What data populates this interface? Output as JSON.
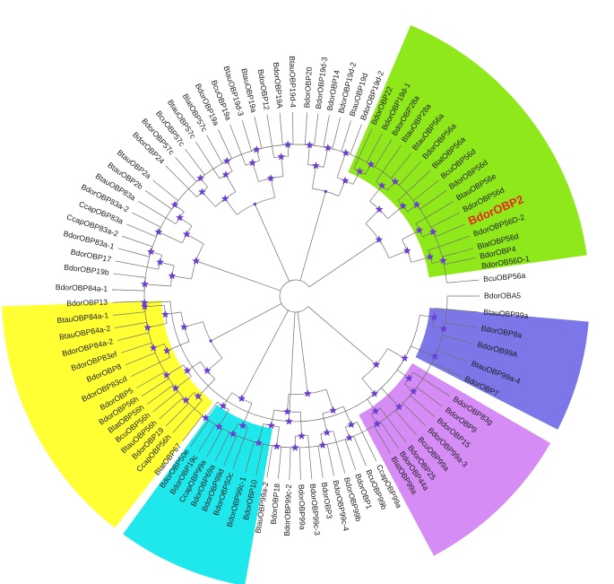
{
  "tree": {
    "highlight_leaf": "BdorOBP2",
    "clades": [
      {
        "name": "yellow",
        "color": "#ffff33",
        "from": 128,
        "to": 178
      },
      {
        "name": "green",
        "color": "#8fe81a",
        "from": 293,
        "to": 352
      },
      {
        "name": "blue",
        "color": "#7b77e8",
        "from": 5,
        "to": 27
      },
      {
        "name": "violet",
        "color": "#d58cf5",
        "from": 30,
        "to": 62
      },
      {
        "name": "cyan",
        "color": "#1ee8ec",
        "from": 100,
        "to": 126
      }
    ],
    "leaves": [
      {
        "label": "BcuOBP56a",
        "angle": 355
      },
      {
        "label": "BdorOBA5",
        "angle": 0
      },
      {
        "label": "BtauOBP99a",
        "angle": 5
      },
      {
        "label": "BdorOBP8a",
        "angle": 10
      },
      {
        "label": "BdorOB99A",
        "angle": 15
      },
      {
        "label": "BtauOBP99a-4",
        "angle": 21
      },
      {
        "label": "BdorOBP7",
        "angle": 26
      },
      {
        "label": "BdorOBP83g",
        "angle": 33
      },
      {
        "label": "BdorOBP9",
        "angle": 37
      },
      {
        "label": "BdorOBP15",
        "angle": 41
      },
      {
        "label": "BdorOBP99a-3",
        "angle": 45
      },
      {
        "label": "BcuOBP99a",
        "angle": 49
      },
      {
        "label": "BdorOBP25",
        "angle": 53
      },
      {
        "label": "BdorOBP44a",
        "angle": 56
      },
      {
        "label": "BlatOBP99a",
        "angle": 59
      },
      {
        "label": "CcapOBP99a",
        "angle": 64
      },
      {
        "label": "BcuOBP99b",
        "angle": 67.5
      },
      {
        "label": "BdorOBP1",
        "angle": 71
      },
      {
        "label": "BdorOBP99b",
        "angle": 74.5
      },
      {
        "label": "BdorOBP99c-4",
        "angle": 78
      },
      {
        "label": "BdorOBP3",
        "angle": 81.5
      },
      {
        "label": "BdorOBP99c-3",
        "angle": 85
      },
      {
        "label": "BdorOBP99a",
        "angle": 88.5
      },
      {
        "label": "BdorOBP99c-2",
        "angle": 92
      },
      {
        "label": "BdorOBP18",
        "angle": 95.5
      },
      {
        "label": "BtauOBP99a-2",
        "angle": 99
      },
      {
        "label": "BdorOBP10",
        "angle": 102.5
      },
      {
        "label": "BdorOBP99c-1",
        "angle": 106
      },
      {
        "label": "BdorOBP50c",
        "angle": 110
      },
      {
        "label": "BdorOBP99d",
        "angle": 113
      },
      {
        "label": "BdorOBP69a",
        "angle": 116
      },
      {
        "label": "CcapOBP99a",
        "angle": 119
      },
      {
        "label": "BdorOBP19c",
        "angle": 122
      },
      {
        "label": "BdorOBP50e",
        "angle": 125
      },
      {
        "label": "BlatOBP67",
        "angle": 128
      },
      {
        "label": "CcapOBP56h",
        "angle": 132
      },
      {
        "label": "BdorOBP19",
        "angle": 135
      },
      {
        "label": "BtauOBP56h",
        "angle": 138
      },
      {
        "label": "BcuOBP56h",
        "angle": 141
      },
      {
        "label": "BlatOBP56h",
        "angle": 144
      },
      {
        "label": "BdorOBP56h",
        "angle": 147
      },
      {
        "label": "BdorOBP5",
        "angle": 150
      },
      {
        "label": "BdorOBP83cd",
        "angle": 154
      },
      {
        "label": "BdorOBP8",
        "angle": 158
      },
      {
        "label": "BdorOBP83ef",
        "angle": 162
      },
      {
        "label": "BdorOBP84a-2",
        "angle": 166
      },
      {
        "label": "BtauOBP84a-2",
        "angle": 170
      },
      {
        "label": "BtauOBP84a-1",
        "angle": 174
      },
      {
        "label": "BdorOBP13",
        "angle": 178
      },
      {
        "label": "BdorOBP84a-1",
        "angle": 182
      },
      {
        "label": "BdorOBP19b",
        "angle": 187
      },
      {
        "label": "BdorOBP17",
        "angle": 191
      },
      {
        "label": "BdorOBP83a-1",
        "angle": 195
      },
      {
        "label": "CcapOBP83a-2",
        "angle": 199
      },
      {
        "label": "CcapOBP83a",
        "angle": 203
      },
      {
        "label": "BdorOBP83a-2",
        "angle": 207
      },
      {
        "label": "BtauOBP83a",
        "angle": 211
      },
      {
        "label": "BtauOBP2b",
        "angle": 215
      },
      {
        "label": "BtauOBP2a",
        "angle": 219
      },
      {
        "label": "BdorOBP24",
        "angle": 225
      },
      {
        "label": "BdorOBP57c",
        "angle": 229
      },
      {
        "label": "BcuOBP57c",
        "angle": 233
      },
      {
        "label": "BtauOBP57c",
        "angle": 237
      },
      {
        "label": "BlatOBP57c",
        "angle": 241
      },
      {
        "label": "BdorOBP19a",
        "angle": 245
      },
      {
        "label": "BcuOBP19a",
        "angle": 249
      },
      {
        "label": "BtauOBP19d-3",
        "angle": 253
      },
      {
        "label": "BtauOBP19a",
        "angle": 257
      },
      {
        "label": "BdorOBP12",
        "angle": 261
      },
      {
        "label": "BdorOBP19A",
        "angle": 265
      },
      {
        "label": "BtauOBP19d-4",
        "angle": 269
      },
      {
        "label": "BdorOBP20",
        "angle": 273.5
      },
      {
        "label": "BdorOBP19d-3",
        "angle": 277
      },
      {
        "label": "BdorOBP14",
        "angle": 280.5
      },
      {
        "label": "BdorOBP19d-2",
        "angle": 284
      },
      {
        "label": "BtauOBP19d",
        "angle": 287.5
      },
      {
        "label": "BdorOBP19d-2",
        "angle": 291
      },
      {
        "label": "BdorOBP22",
        "angle": 294.5
      },
      {
        "label": "BdorOBP19d-1",
        "angle": 298
      },
      {
        "label": "BdorOBP28a",
        "angle": 301.5
      },
      {
        "label": "BtauOBP28a",
        "angle": 305
      },
      {
        "label": "BtauOBP56a",
        "angle": 309
      },
      {
        "label": "BdorOBP56a",
        "angle": 313
      },
      {
        "label": "BlatOBP56a",
        "angle": 317
      },
      {
        "label": "BcuOBP56d",
        "angle": 321
      },
      {
        "label": "BdorOBP56d",
        "angle": 325
      },
      {
        "label": "BtauOBP56e",
        "angle": 329
      },
      {
        "label": "BdorOBP56d",
        "angle": 333
      },
      {
        "label": "BdorOBP2",
        "angle": 337
      },
      {
        "label": "BdorOBP56D-2",
        "angle": 341
      },
      {
        "label": "BlatOBP56d",
        "angle": 345
      },
      {
        "label": "BdorOBP4",
        "angle": 348
      },
      {
        "label": "BdorOB56D-1",
        "angle": 351
      }
    ]
  }
}
